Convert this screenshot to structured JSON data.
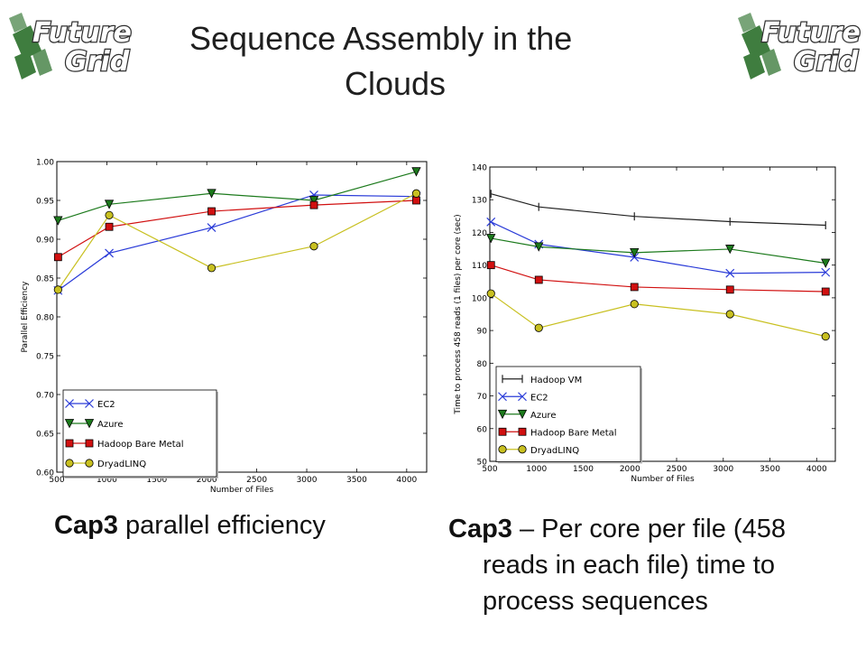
{
  "logo": {
    "line1": "Future",
    "line2": "Grid"
  },
  "title": {
    "line1": "Sequence Assembly in the",
    "line2": "Clouds"
  },
  "caption_left": {
    "bold": "Cap3",
    "rest": " parallel efficiency"
  },
  "caption_right": {
    "bold": "Cap3",
    "line1_rest": " – Per core per file (458",
    "line2": "reads in each file) time to",
    "line3": "process sequences"
  },
  "colors": {
    "EC2": "#2a3bd8",
    "Azure": "#1c7a1c",
    "Hadoop Bare Metal": "#d11010",
    "DryadLINQ": "#c8c020",
    "Hadoop VM": "#222222"
  },
  "chart_data": [
    {
      "type": "line",
      "xlabel": "Number of Files",
      "ylabel": "Parallel Efficiency",
      "xlim": [
        500,
        4200
      ],
      "ylim": [
        0.6,
        1.0
      ],
      "xticks": [
        "500",
        "1000",
        "1500",
        "2000",
        "2500",
        "3000",
        "3500",
        "4000"
      ],
      "yticks": [
        "0.60",
        "0.65",
        "0.70",
        "0.75",
        "0.80",
        "0.85",
        "0.90",
        "0.95",
        "1.00"
      ],
      "grid": false,
      "legend": "bottom-left",
      "series": [
        {
          "name": "EC2",
          "marker": "x",
          "x": [
            512,
            1024,
            2048,
            3072,
            4096
          ],
          "values": [
            0.834,
            0.882,
            0.915,
            0.957,
            0.955
          ]
        },
        {
          "name": "Azure",
          "marker": "triangle-down",
          "x": [
            512,
            1024,
            2048,
            3072,
            4096
          ],
          "values": [
            0.924,
            0.945,
            0.959,
            0.95,
            0.987
          ]
        },
        {
          "name": "Hadoop Bare Metal",
          "marker": "square",
          "x": [
            512,
            1024,
            2048,
            3072,
            4096
          ],
          "values": [
            0.877,
            0.916,
            0.936,
            0.944,
            0.95
          ]
        },
        {
          "name": "DryadLINQ",
          "marker": "circle",
          "x": [
            512,
            1024,
            2048,
            3072,
            4096
          ],
          "values": [
            0.835,
            0.931,
            0.863,
            0.891,
            0.959
          ]
        }
      ]
    },
    {
      "type": "line",
      "xlabel": "Number of Files",
      "ylabel": "Time to process 458 reads (1 files) per core (sec)",
      "xlim": [
        500,
        4200
      ],
      "ylim": [
        50,
        140
      ],
      "xticks": [
        "500",
        "1000",
        "1500",
        "2000",
        "2500",
        "3000",
        "3500",
        "4000"
      ],
      "yticks": [
        "50",
        "60",
        "70",
        "80",
        "90",
        "100",
        "110",
        "120",
        "130",
        "140"
      ],
      "grid": false,
      "legend": "bottom-left",
      "series": [
        {
          "name": "Hadoop VM",
          "marker": "tick",
          "x": [
            512,
            1024,
            2048,
            3072,
            4096
          ],
          "values": [
            131.8,
            127.8,
            124.9,
            123.3,
            122.2
          ]
        },
        {
          "name": "EC2",
          "marker": "x",
          "x": [
            512,
            1024,
            2048,
            3072,
            4096
          ],
          "values": [
            123.2,
            116.4,
            112.4,
            107.5,
            107.8
          ]
        },
        {
          "name": "Azure",
          "marker": "triangle-down",
          "x": [
            512,
            1024,
            2048,
            3072,
            4096
          ],
          "values": [
            118.2,
            115.6,
            113.8,
            114.9,
            110.6
          ]
        },
        {
          "name": "Hadoop Bare Metal",
          "marker": "square",
          "x": [
            512,
            1024,
            2048,
            3072,
            4096
          ],
          "values": [
            110.0,
            105.5,
            103.3,
            102.5,
            101.9
          ]
        },
        {
          "name": "DryadLINQ",
          "marker": "circle",
          "x": [
            512,
            1024,
            2048,
            3072,
            4096
          ],
          "values": [
            101.3,
            90.8,
            98.1,
            95.0,
            88.2
          ]
        }
      ]
    }
  ]
}
